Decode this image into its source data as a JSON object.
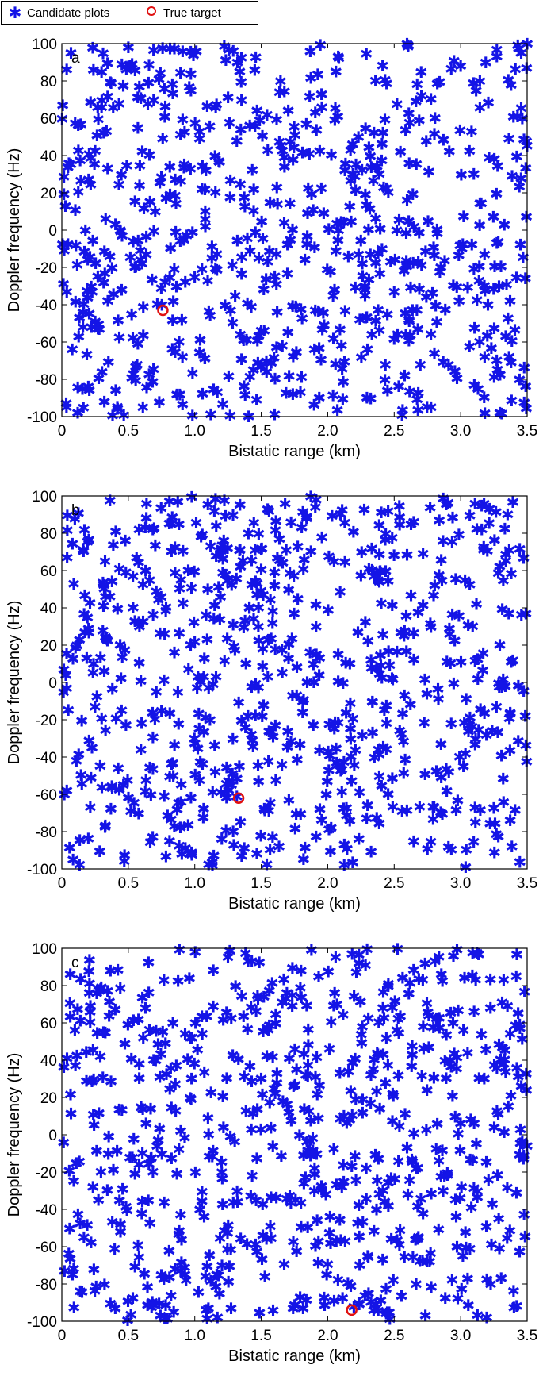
{
  "legend": {
    "candidate_label": "Candidate plots",
    "true_label": "True target"
  },
  "colors": {
    "candidate": "#1414e6",
    "true_target": "#e01010",
    "axis": "#000000"
  },
  "chart_data": [
    {
      "type": "scatter",
      "panel_label": "a",
      "xlabel": "Bistatic range (km)",
      "ylabel": "Doppler frequency (Hz)",
      "xlim": [
        0,
        3.5
      ],
      "ylim": [
        -100,
        100
      ],
      "xticks": [
        "0",
        "0.5",
        "1.0",
        "1.5",
        "2.0",
        "2.5",
        "3.0",
        "3.5"
      ],
      "yticks": [
        "100",
        "80",
        "60",
        "40",
        "20",
        "0",
        "-20",
        "-40",
        "-60",
        "-80",
        "-100"
      ],
      "series": [
        {
          "name": "Candidate plots",
          "marker": "asterisk",
          "count_approx": 700
        },
        {
          "name": "True target",
          "marker": "circle",
          "points": [
            [
              0.76,
              -43
            ]
          ]
        }
      ]
    },
    {
      "type": "scatter",
      "panel_label": "b",
      "xlabel": "Bistatic range (km)",
      "ylabel": "Doppler frequency (Hz)",
      "xlim": [
        0,
        3.5
      ],
      "ylim": [
        -100,
        100
      ],
      "xticks": [
        "0",
        "0.5",
        "1.0",
        "1.5",
        "2.0",
        "2.5",
        "3.0",
        "3.5"
      ],
      "yticks": [
        "100",
        "80",
        "60",
        "40",
        "20",
        "0",
        "-20",
        "-40",
        "-60",
        "-80",
        "-100"
      ],
      "series": [
        {
          "name": "Candidate plots",
          "marker": "asterisk",
          "count_approx": 700
        },
        {
          "name": "True target",
          "marker": "circle",
          "points": [
            [
              1.33,
              -62
            ]
          ]
        }
      ]
    },
    {
      "type": "scatter",
      "panel_label": "c",
      "xlabel": "Bistatic range (km)",
      "ylabel": "Doppler frequency (Hz)",
      "xlim": [
        0,
        3.5
      ],
      "ylim": [
        -100,
        100
      ],
      "xticks": [
        "0",
        "0.5",
        "1.0",
        "1.5",
        "2.0",
        "2.5",
        "3.0",
        "3.5"
      ],
      "yticks": [
        "100",
        "80",
        "60",
        "40",
        "20",
        "0",
        "-20",
        "-40",
        "-60",
        "-80",
        "-100"
      ],
      "series": [
        {
          "name": "Candidate plots",
          "marker": "asterisk",
          "count_approx": 700
        },
        {
          "name": "True target",
          "marker": "circle",
          "points": [
            [
              2.18,
              -94
            ]
          ]
        }
      ]
    }
  ]
}
